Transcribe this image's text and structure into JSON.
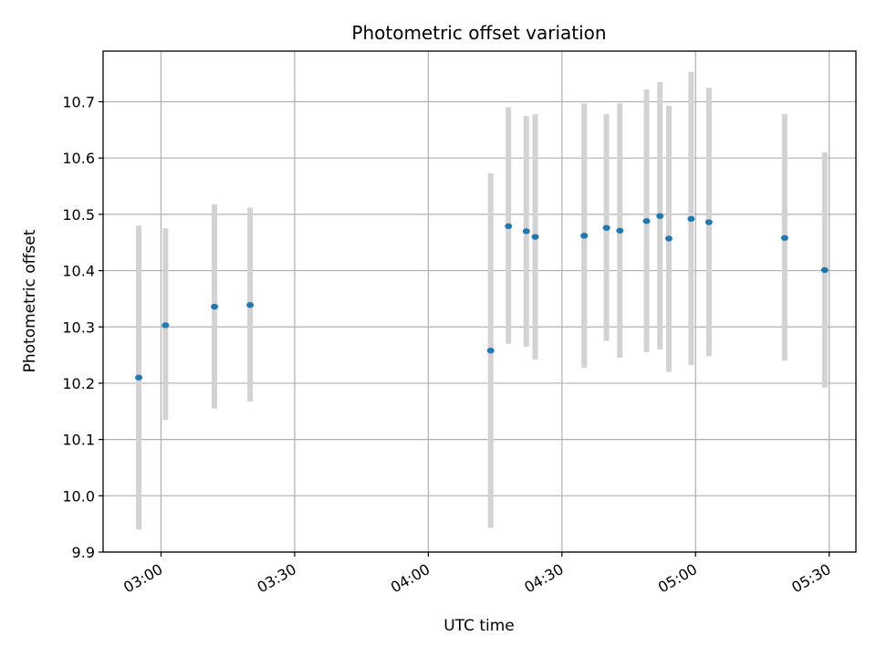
{
  "chart_data": {
    "type": "scatter",
    "title": "Photometric offset variation",
    "xlabel": "UTC time",
    "ylabel": "Photometric offset",
    "x_unit": "UTC time of day",
    "xlim": [
      "02:47",
      "05:36"
    ],
    "ylim": [
      9.9,
      10.79
    ],
    "grid": true,
    "x_ticks": [
      "03:00",
      "03:30",
      "04:00",
      "04:30",
      "05:00",
      "05:30"
    ],
    "y_ticks": [
      9.9,
      10.0,
      10.1,
      10.2,
      10.3,
      10.4,
      10.5,
      10.6,
      10.7
    ],
    "marker_color": "#1f77b4",
    "errorbar_color": "#d3d3d3",
    "points": [
      {
        "x": "02:55",
        "y": 10.21,
        "ylow": 9.94,
        "yhigh": 10.48
      },
      {
        "x": "03:01",
        "y": 10.303,
        "ylow": 10.135,
        "yhigh": 10.475
      },
      {
        "x": "03:12",
        "y": 10.336,
        "ylow": 10.155,
        "yhigh": 10.518
      },
      {
        "x": "03:20",
        "y": 10.339,
        "ylow": 10.167,
        "yhigh": 10.512
      },
      {
        "x": "04:14",
        "y": 10.258,
        "ylow": 9.943,
        "yhigh": 10.573
      },
      {
        "x": "04:18",
        "y": 10.479,
        "ylow": 10.27,
        "yhigh": 10.69
      },
      {
        "x": "04:22",
        "y": 10.47,
        "ylow": 10.265,
        "yhigh": 10.675
      },
      {
        "x": "04:24",
        "y": 10.46,
        "ylow": 10.242,
        "yhigh": 10.678
      },
      {
        "x": "04:35",
        "y": 10.462,
        "ylow": 10.227,
        "yhigh": 10.697
      },
      {
        "x": "04:35",
        "y": 10.462,
        "ylow": 10.232,
        "yhigh": 10.69
      },
      {
        "x": "04:40",
        "y": 10.476,
        "ylow": 10.275,
        "yhigh": 10.678
      },
      {
        "x": "04:43",
        "y": 10.471,
        "ylow": 10.245,
        "yhigh": 10.697
      },
      {
        "x": "04:49",
        "y": 10.488,
        "ylow": 10.255,
        "yhigh": 10.722
      },
      {
        "x": "04:52",
        "y": 10.497,
        "ylow": 10.26,
        "yhigh": 10.735
      },
      {
        "x": "04:54",
        "y": 10.457,
        "ylow": 10.22,
        "yhigh": 10.693
      },
      {
        "x": "04:59",
        "y": 10.492,
        "ylow": 10.232,
        "yhigh": 10.753
      },
      {
        "x": "05:03",
        "y": 10.486,
        "ylow": 10.248,
        "yhigh": 10.725
      },
      {
        "x": "05:20",
        "y": 10.458,
        "ylow": 10.24,
        "yhigh": 10.678
      },
      {
        "x": "05:29",
        "y": 10.401,
        "ylow": 10.192,
        "yhigh": 10.61
      }
    ]
  }
}
